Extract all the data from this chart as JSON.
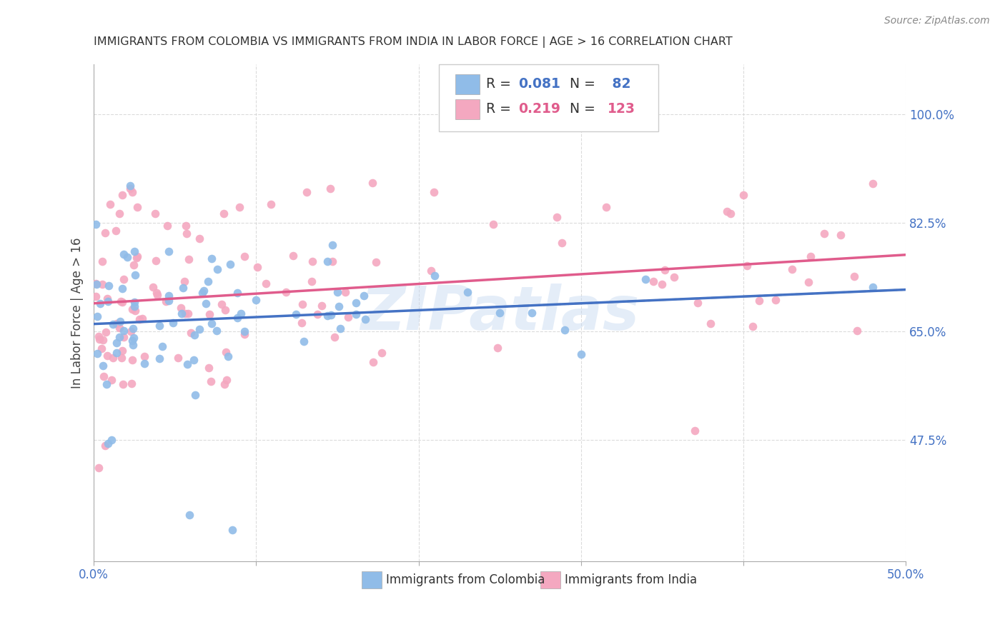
{
  "title": "IMMIGRANTS FROM COLOMBIA VS IMMIGRANTS FROM INDIA IN LABOR FORCE | AGE > 16 CORRELATION CHART",
  "source": "Source: ZipAtlas.com",
  "ylabel": "In Labor Force | Age > 16",
  "xlim_min": 0.0,
  "xlim_max": 0.5,
  "ylim_min": 0.28,
  "ylim_max": 1.08,
  "xtick_positions": [
    0.0,
    0.1,
    0.2,
    0.3,
    0.4,
    0.5
  ],
  "xticklabels": [
    "0.0%",
    "",
    "",
    "",
    "",
    "50.0%"
  ],
  "ytick_positions": [
    0.475,
    0.65,
    0.825,
    1.0
  ],
  "ytick_labels": [
    "47.5%",
    "65.0%",
    "82.5%",
    "100.0%"
  ],
  "R_colombia": 0.081,
  "N_colombia": 82,
  "R_india": 0.219,
  "N_india": 123,
  "color_colombia": "#90bce8",
  "color_india": "#f4a8c0",
  "line_colombia": "#4472C4",
  "line_india": "#E05C8C",
  "line_dash_color": "#b0b0b0",
  "watermark": "ZIPatlas",
  "background_color": "#ffffff",
  "grid_color": "#cccccc",
  "title_color": "#333333",
  "tick_label_color": "#4472C4",
  "legend_R_col_color": "#4472C4",
  "legend_R_ind_color": "#E05C8C",
  "legend_N_col_color": "#4472C4",
  "legend_N_ind_color": "#E05C8C"
}
